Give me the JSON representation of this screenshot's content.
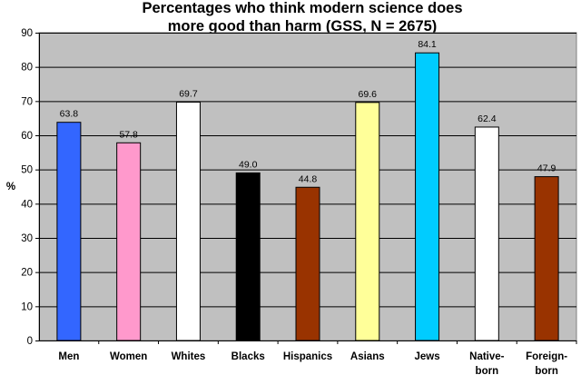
{
  "chart_data": {
    "type": "bar",
    "title_lines": [
      "Percentages who think modern science does",
      "more good than harm (GSS, N = 2675)"
    ],
    "xlabel": "",
    "ylabel": "%",
    "ylim": [
      0,
      90
    ],
    "yticks": [
      0,
      10,
      20,
      30,
      40,
      50,
      60,
      70,
      80,
      90
    ],
    "grid": true,
    "legend": "none",
    "categories": [
      [
        "Men"
      ],
      [
        "Women"
      ],
      [
        "Whites"
      ],
      [
        "Blacks"
      ],
      [
        "Hispanics"
      ],
      [
        "Asians"
      ],
      [
        "Jews"
      ],
      [
        "Native-",
        "born"
      ],
      [
        "Foreign-",
        "born"
      ]
    ],
    "values": [
      63.8,
      57.8,
      69.7,
      49.0,
      44.8,
      69.6,
      84.1,
      62.4,
      47.9
    ],
    "value_labels": [
      "63.8",
      "57.8",
      "69.7",
      "49.0",
      "44.8",
      "69.6",
      "84.1",
      "62.4",
      "47.9"
    ],
    "colors": [
      "#3366ff",
      "#ff99cc",
      "#ffffff",
      "#000000",
      "#993300",
      "#ffff99",
      "#00ccff",
      "#ffffff",
      "#993300"
    ],
    "plot_background": "#c0c0c0"
  }
}
